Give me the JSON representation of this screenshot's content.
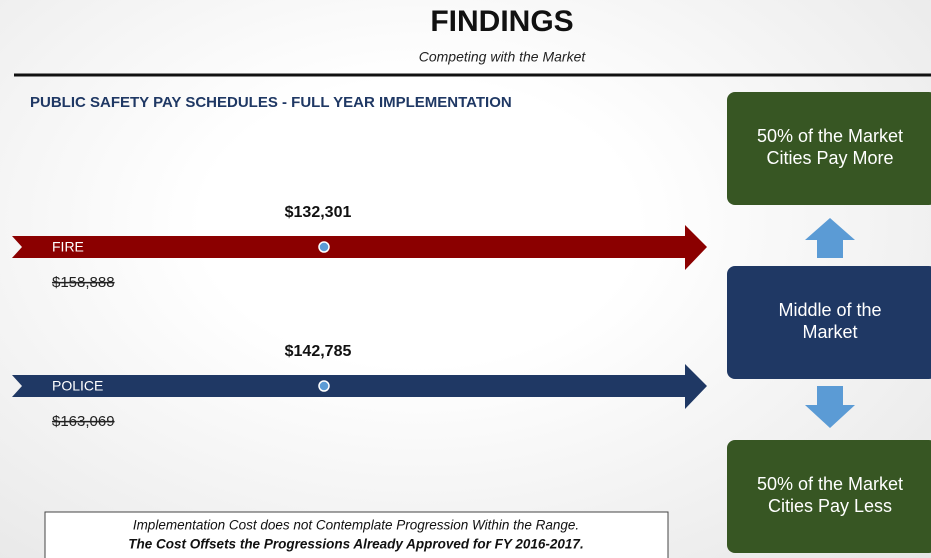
{
  "header": {
    "title": "FINDINGS",
    "subtitle": "Competing with the Market"
  },
  "section": {
    "heading": "PUBLIC SAFETY PAY SCHEDULES - FULL YEAR IMPLEMENTATION"
  },
  "rows": [
    {
      "label": "FIRE",
      "new_value": "$132,301",
      "old_value": "$158,888"
    },
    {
      "label": "POLICE",
      "new_value": "$142,785",
      "old_value": "$163,069"
    }
  ],
  "boxes": [
    {
      "lines": [
        "50% of the Market",
        "Cities Pay More"
      ]
    },
    {
      "lines": [
        "Middle of the",
        "Market"
      ]
    },
    {
      "lines": [
        "50% of the Market",
        "Cities Pay Less"
      ]
    }
  ],
  "note": {
    "lines": [
      "Implementation Cost does not Contemplate Progression Within the Range.",
      "The Cost Offsets the Progressions Already Approved for FY 2016-2017."
    ]
  }
}
